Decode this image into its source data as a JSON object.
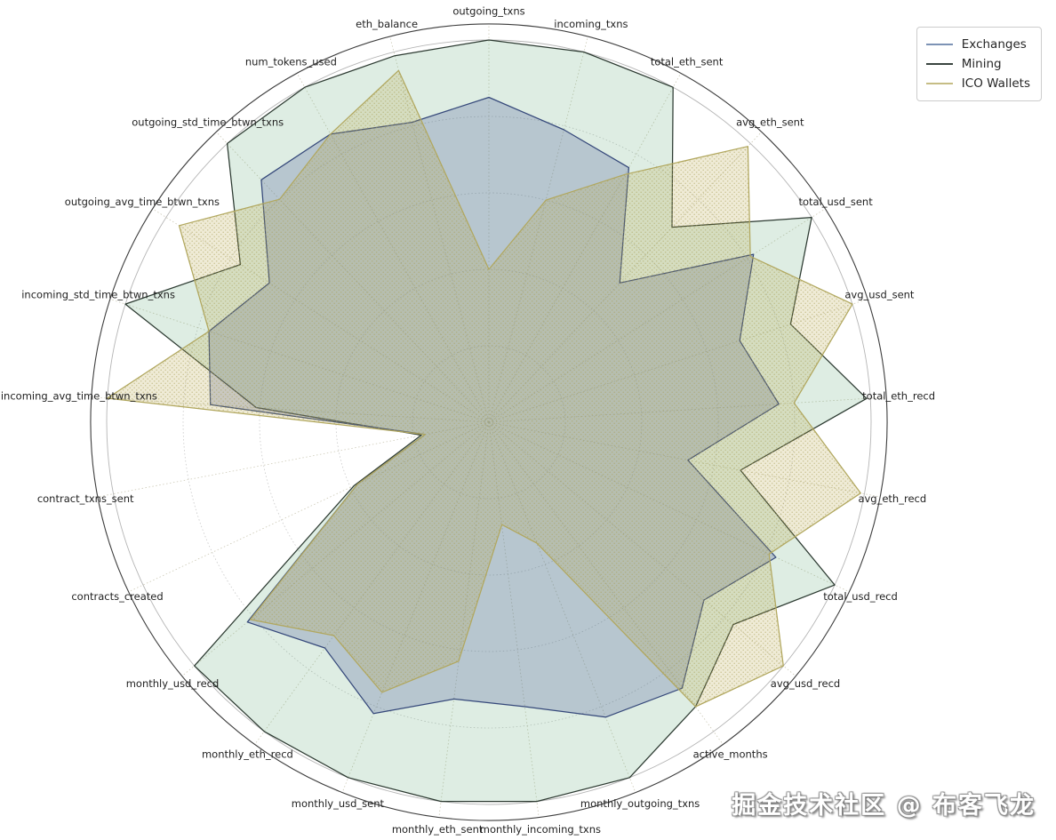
{
  "chart_data": {
    "type": "radar",
    "title": "",
    "grid_on": true,
    "r_ticks": [
      0.2,
      0.4,
      0.6,
      0.8,
      1.0
    ],
    "r_axis_range": [
      0,
      1.042
    ],
    "legend_position": "top-right",
    "categories": [
      "outgoing_txns",
      "incoming_txns",
      "total_eth_sent",
      "avg_eth_sent",
      "total_usd_sent",
      "avg_usd_sent",
      "total_eth_recd",
      "avg_eth_recd",
      "total_usd_recd",
      "avg_usd_recd",
      "active_months",
      "monthly_outgoing_txns",
      "monthly_incoming_txns",
      "monthly_eth_sent",
      "monthly_usd_sent",
      "monthly_eth_recd",
      "monthly_usd_recd",
      "contracts_created",
      "contract_txns_sent",
      "incoming_avg_time_btwn_txns",
      "incoming_std_time_btwn_txns",
      "outgoing_avg_time_btwn_txns",
      "outgoing_std_time_btwn_txns",
      "num_tokens_used",
      "eth_balance"
    ],
    "series": [
      {
        "name": "Mining",
        "edge_color": "#2c3a31",
        "fill_color": "#4a9a62",
        "fill_opacity": 0.18,
        "hatch": false,
        "values": [
          1.0,
          1.0,
          1.0,
          0.7,
          1.0,
          0.83,
          0.99,
          0.67,
          1.0,
          0.83,
          0.92,
          1.0,
          1.0,
          1.0,
          1.0,
          1.0,
          1.0,
          0.39,
          0.18,
          0.61,
          1.0,
          0.77,
          1.0,
          1.0,
          0.99
        ]
      },
      {
        "name": "Exchanges",
        "edge_color": "#35487a",
        "fill_color": "#51619b",
        "fill_opacity": 0.28,
        "hatch": false,
        "values": [
          0.85,
          0.79,
          0.76,
          0.5,
          0.82,
          0.69,
          0.76,
          0.53,
          0.83,
          0.73,
          0.86,
          0.83,
          0.75,
          0.73,
          0.82,
          0.73,
          0.82,
          0.38,
          0.17,
          0.73,
          0.77,
          0.68,
          0.87,
          0.86,
          0.81
        ]
      },
      {
        "name": "ICO Wallets",
        "edge_color": "#b1a75e",
        "fill_color": "#b5a545",
        "fill_opacity": 0.22,
        "hatch": true,
        "values": [
          0.4,
          0.6,
          0.74,
          0.99,
          0.81,
          1.0,
          0.8,
          0.99,
          0.81,
          1.0,
          0.92,
          0.34,
          0.27,
          0.63,
          0.76,
          0.69,
          0.81,
          0.38,
          0.17,
          1.0,
          0.77,
          0.96,
          0.8,
          0.86,
          0.95
        ]
      }
    ]
  },
  "legend": {
    "items": [
      {
        "label": "Exchanges",
        "color": "#7d93b5"
      },
      {
        "label": "Mining",
        "color": "#3a4440"
      },
      {
        "label": "ICO Wallets",
        "color": "#c6bd85"
      }
    ]
  },
  "watermark": {
    "text": "掘金技术社区 @ 布客飞龙"
  },
  "grid": {
    "spoke_color": "#cbc8b4",
    "ring_color": "#c8c8c8",
    "unit_ring_color": "#b5b5b5",
    "outer_ring_color": "#3d3d3d"
  }
}
